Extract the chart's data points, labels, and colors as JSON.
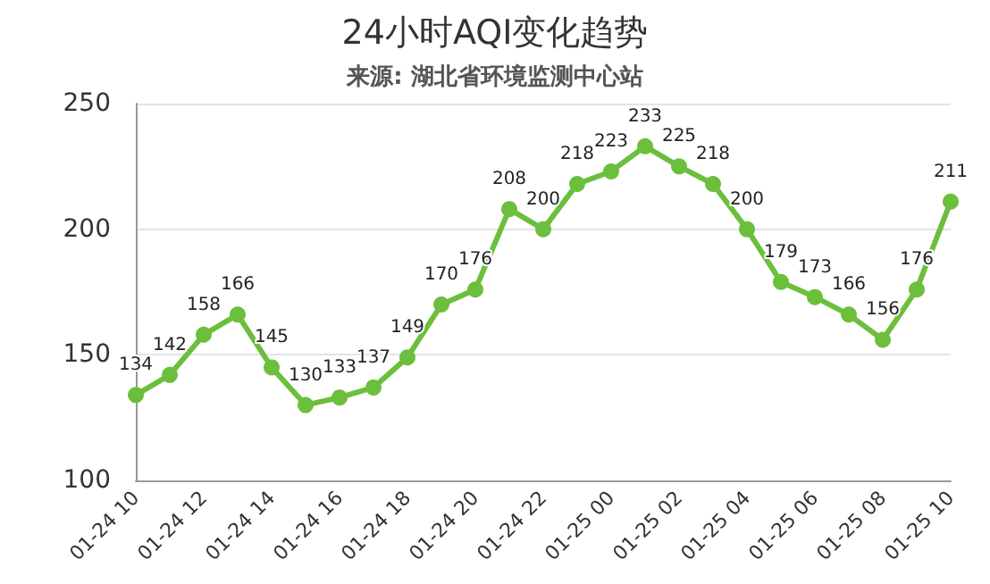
{
  "chart_data": {
    "type": "line",
    "title": "24小时AQI变化趋势",
    "subtitle": "来源: 湖北省环境监测中心站",
    "categories": [
      "01-24 10",
      null,
      "01-24 12",
      null,
      "01-24 14",
      null,
      "01-24 16",
      null,
      "01-24 18",
      null,
      "01-24 20",
      null,
      "01-24 22",
      null,
      "01-25 00",
      null,
      "01-25 02",
      null,
      "01-25 04",
      null,
      "01-25 06",
      null,
      "01-25 08",
      null,
      "01-25 10"
    ],
    "series": [
      {
        "color": "#6cbf3c",
        "values": [
          134,
          142,
          158,
          166,
          145,
          130,
          133,
          137,
          149,
          170,
          176,
          208,
          200,
          218,
          223,
          233,
          225,
          218,
          200,
          179,
          173,
          166,
          156,
          176,
          211
        ]
      }
    ],
    "ylim": [
      100,
      250
    ],
    "yticks": [
      100,
      150,
      200,
      250
    ],
    "grid": "y",
    "marker": "circle",
    "line_style": "solid",
    "data_labels": true
  }
}
